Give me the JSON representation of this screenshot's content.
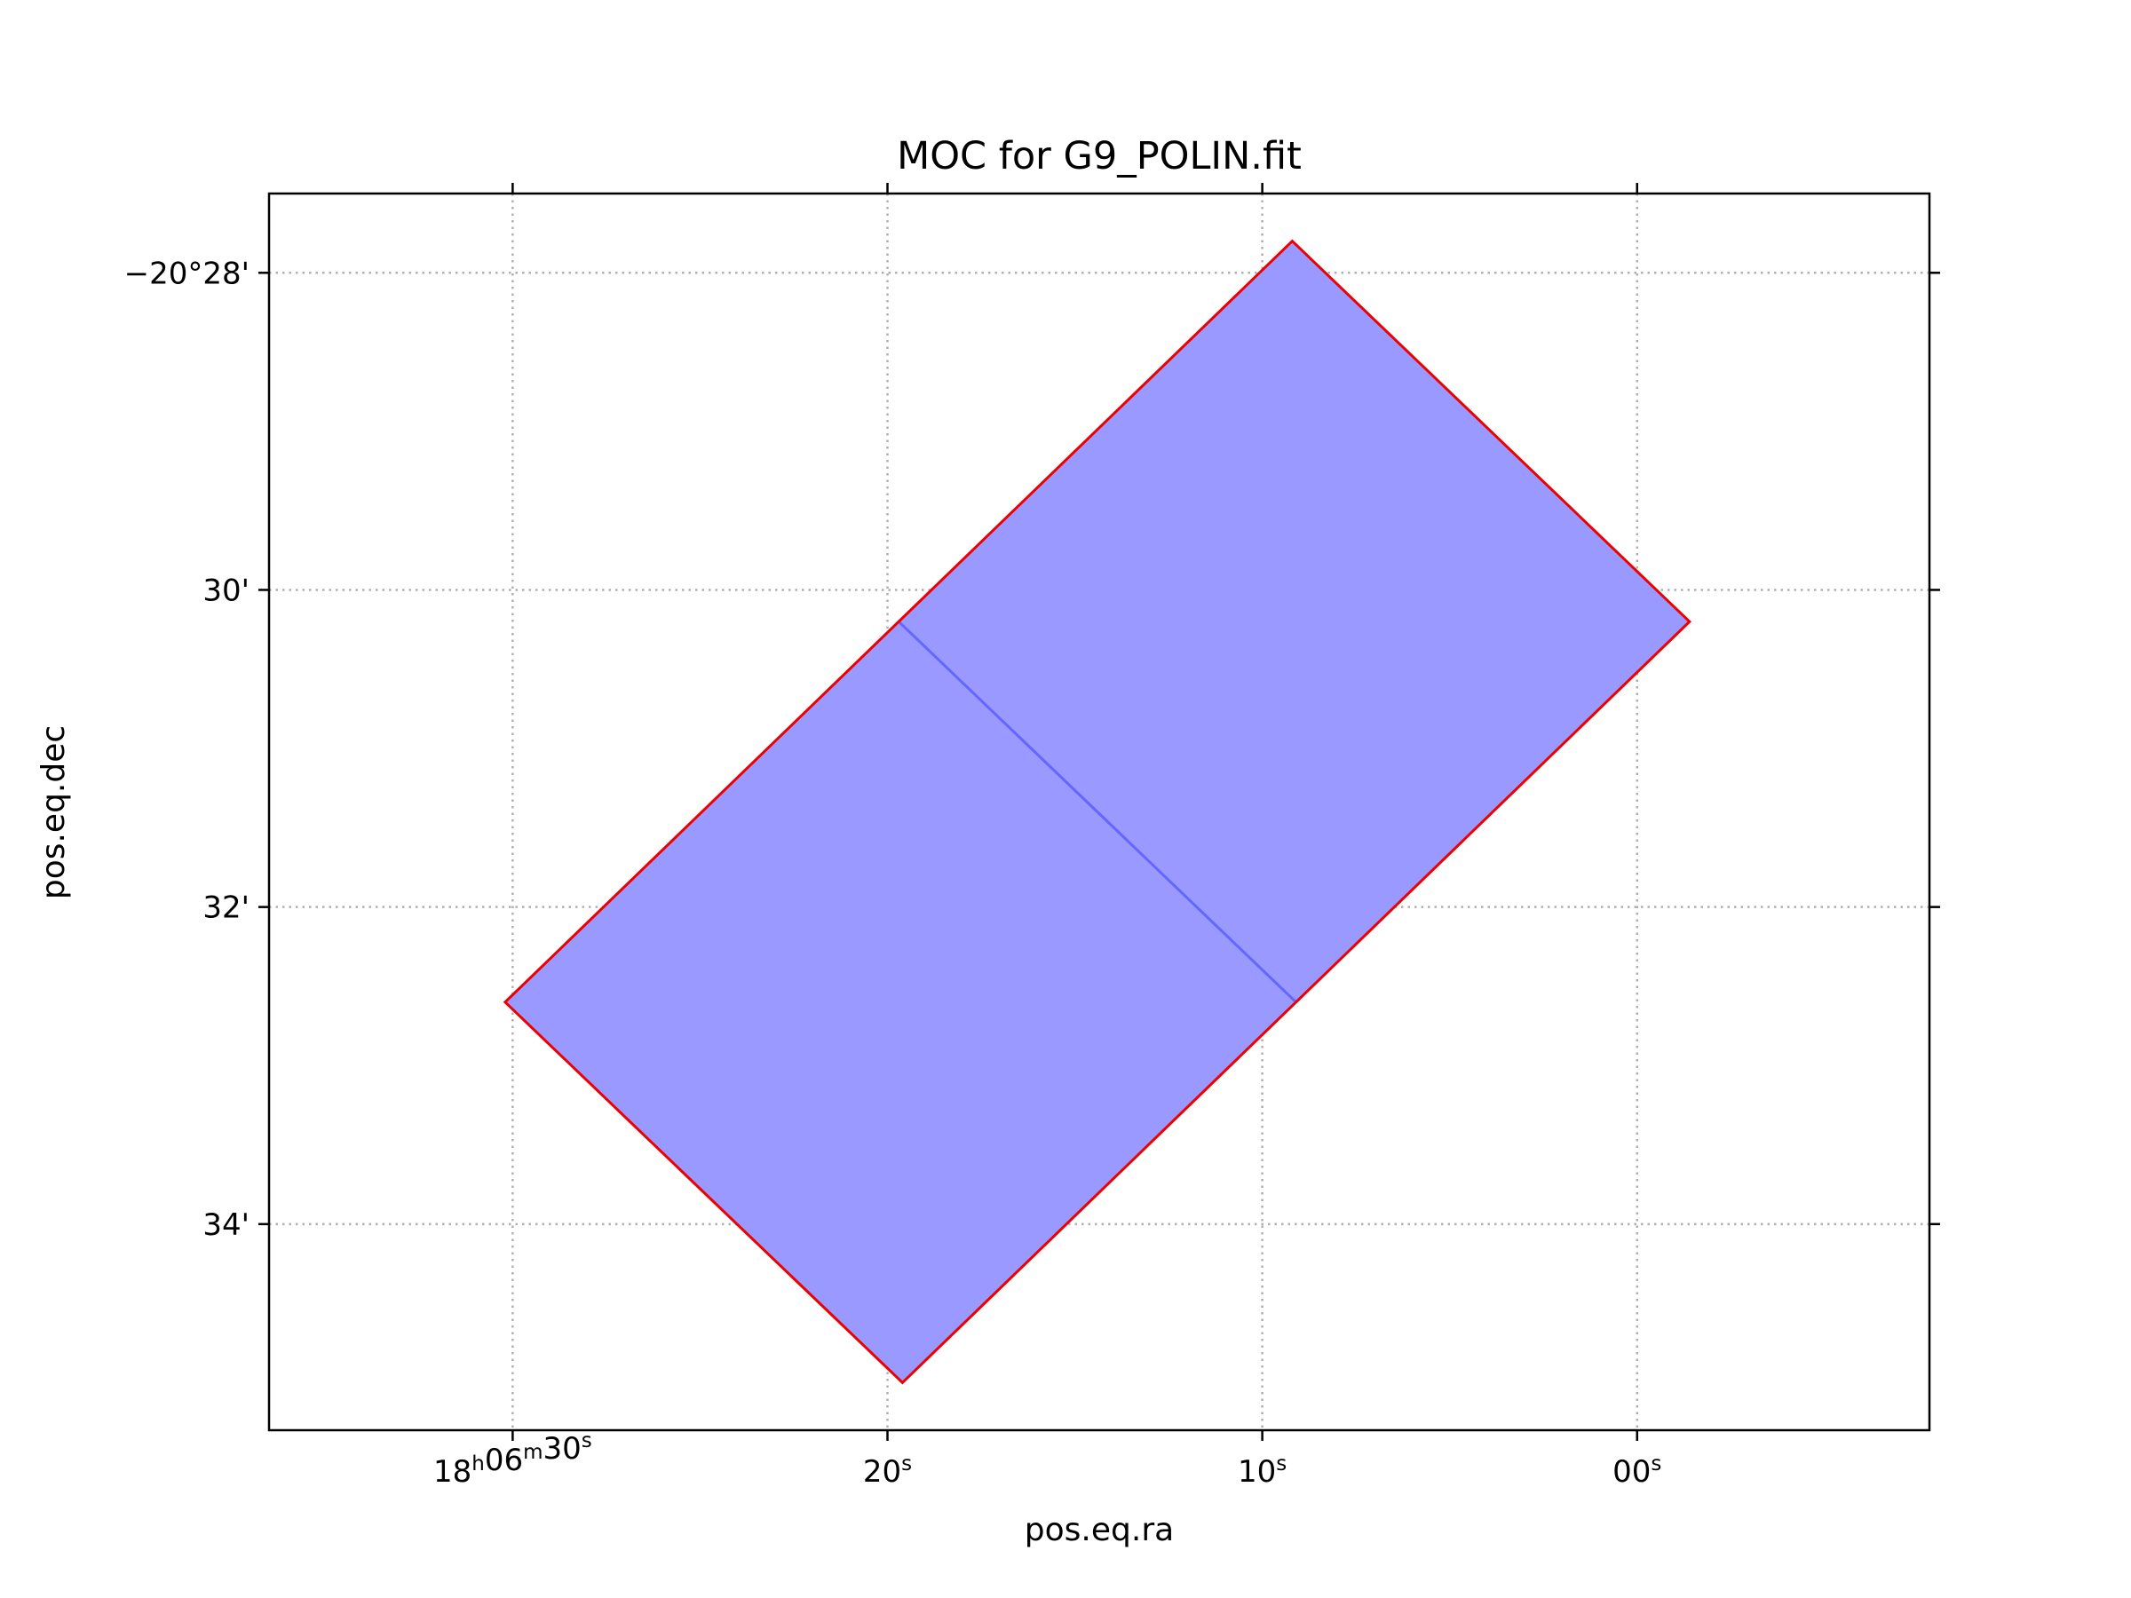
{
  "chart_data": {
    "type": "area",
    "title": "MOC for G9_POLIN.fit",
    "xlabel": "pos.eq.ra",
    "ylabel": "pos.eq.dec",
    "x_unit": "seconds of RA past 18h06m00s",
    "y_unit": "arcminutes past -20°00'",
    "xlim": [
      36.5,
      -7.8
    ],
    "ylim": [
      -35.3,
      -27.5
    ],
    "grid": true,
    "x_ticks": [
      {
        "value": 30,
        "label_main": "18",
        "label_h": "h",
        "label_m_val": "06",
        "label_m": "m",
        "label_s_val": "30",
        "label_s": "s"
      },
      {
        "value": 20,
        "label_s_val": "20",
        "label_s": "s"
      },
      {
        "value": 10,
        "label_s_val": "10",
        "label_s": "s"
      },
      {
        "value": 0,
        "label_s_val": "00",
        "label_s": "s"
      }
    ],
    "y_ticks": [
      {
        "value": -28,
        "label": "−20°28'"
      },
      {
        "value": -30,
        "label": "30'"
      },
      {
        "value": -32,
        "label": "32'"
      },
      {
        "value": -34,
        "label": "34'"
      }
    ],
    "fill_color": "#9999ff",
    "outline_color": "#ee0000",
    "inner_edge_color": "#6666ff",
    "cells": [
      {
        "name": "cell-upper",
        "vertices": [
          [
            9.2,
            -27.8
          ],
          [
            -1.4,
            -30.2
          ],
          [
            9.1,
            -32.6
          ],
          [
            19.7,
            -30.2
          ]
        ]
      },
      {
        "name": "cell-lower",
        "vertices": [
          [
            19.7,
            -30.2
          ],
          [
            9.1,
            -32.6
          ],
          [
            19.6,
            -35.0
          ],
          [
            30.2,
            -32.6
          ]
        ]
      }
    ],
    "outline": [
      [
        9.2,
        -27.8
      ],
      [
        -1.4,
        -30.2
      ],
      [
        19.6,
        -35.0
      ],
      [
        30.2,
        -32.6
      ]
    ],
    "shared_edge": [
      [
        19.7,
        -30.2
      ],
      [
        9.1,
        -32.6
      ]
    ]
  }
}
